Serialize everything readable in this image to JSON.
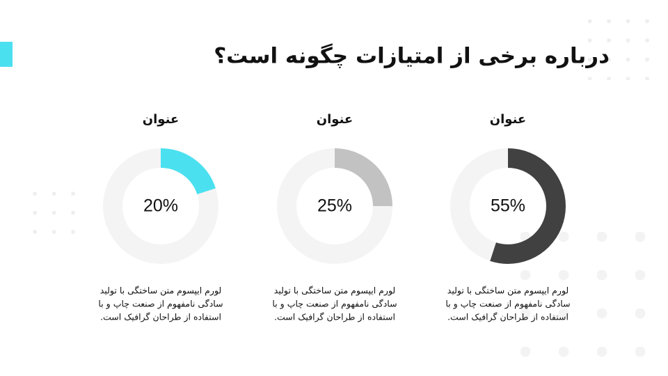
{
  "title": "درباره برخی از امتیازات چگونه است؟",
  "chart_data": [
    {
      "type": "donut",
      "title": "عنوان",
      "values": [
        55
      ],
      "value_labels": [
        "55%"
      ],
      "color": "#414141",
      "text": [
        "لورم ایپسوم متن ساختگی با تولید",
        "سادگی نامفهوم از صنعت چاپ و با",
        "استفاده از طراحان گرافیک است."
      ]
    },
    {
      "type": "donut",
      "title": "عنوان",
      "values": [
        25
      ],
      "value_labels": [
        "25%"
      ],
      "color": "#c2c2c2",
      "text": [
        "لورم ایپسوم متن ساختگی با تولید",
        "سادگی نامفهوم از صنعت چاپ و با",
        "استفاده از طراحان گرافیک است."
      ]
    },
    {
      "type": "donut",
      "title": "عنوان",
      "values": [
        20
      ],
      "value_labels": [
        "20%"
      ],
      "color": "#4be0f0",
      "text": [
        "لورم ایپسوم متن ساختگی با تولید",
        "سادگی نامفهوم از صنعت چاپ و با",
        "استفاده از طراحان گرافیک است."
      ]
    }
  ]
}
